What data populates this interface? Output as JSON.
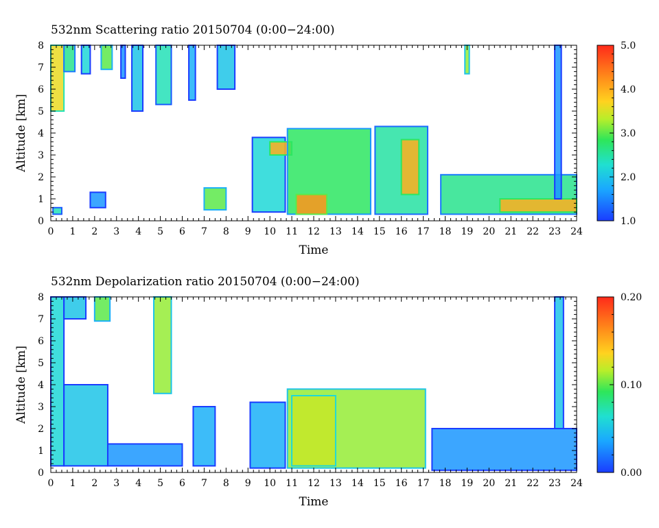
{
  "chart_data": [
    {
      "type": "heatmap",
      "title": "532nm Scattering ratio  20150704 (0:00−24:00)",
      "xlabel": "Time",
      "ylabel": "Altitude [km]",
      "xlim": [
        0,
        24
      ],
      "ylim": [
        0,
        8
      ],
      "x_ticks": [
        "0",
        "1",
        "2",
        "3",
        "4",
        "5",
        "6",
        "7",
        "8",
        "9",
        "10",
        "11",
        "12",
        "13",
        "14",
        "15",
        "16",
        "17",
        "18",
        "19",
        "20",
        "21",
        "22",
        "23",
        "24"
      ],
      "y_ticks": [
        "0",
        "1",
        "2",
        "3",
        "4",
        "5",
        "6",
        "7",
        "8"
      ],
      "colorbar": {
        "min": 1.0,
        "max": 5.0,
        "ticks": [
          "1.0",
          "2.0",
          "3.0",
          "4.0",
          "5.0"
        ]
      },
      "features": [
        {
          "x0": 0.0,
          "x1": 0.6,
          "y0": 5.0,
          "y1": 8.0,
          "v": 3.6
        },
        {
          "x0": 0.1,
          "x1": 0.5,
          "y0": 0.3,
          "y1": 0.6,
          "v": 2.4
        },
        {
          "x0": 0.6,
          "x1": 1.1,
          "y0": 6.8,
          "y1": 8.0,
          "v": 2.6
        },
        {
          "x0": 1.4,
          "x1": 1.8,
          "y0": 6.7,
          "y1": 8.0,
          "v": 2.2
        },
        {
          "x0": 2.3,
          "x1": 2.8,
          "y0": 6.9,
          "y1": 8.0,
          "v": 3.0
        },
        {
          "x0": 1.8,
          "x1": 2.5,
          "y0": 0.6,
          "y1": 1.3,
          "v": 1.6
        },
        {
          "x0": 3.2,
          "x1": 3.4,
          "y0": 6.5,
          "y1": 8.0,
          "v": 1.6
        },
        {
          "x0": 3.7,
          "x1": 4.2,
          "y0": 5.0,
          "y1": 8.0,
          "v": 2.0
        },
        {
          "x0": 4.8,
          "x1": 5.5,
          "y0": 5.3,
          "y1": 8.0,
          "v": 2.4
        },
        {
          "x0": 6.3,
          "x1": 6.6,
          "y0": 5.5,
          "y1": 8.0,
          "v": 1.8
        },
        {
          "x0": 7.6,
          "x1": 8.4,
          "y0": 6.0,
          "y1": 8.0,
          "v": 2.0
        },
        {
          "x0": 7.0,
          "x1": 8.0,
          "y0": 0.5,
          "y1": 1.5,
          "v": 3.0
        },
        {
          "x0": 9.2,
          "x1": 10.7,
          "y0": 0.4,
          "y1": 3.8,
          "v": 2.2
        },
        {
          "x0": 10.0,
          "x1": 11.0,
          "y0": 3.0,
          "y1": 3.6,
          "v": 4.0
        },
        {
          "x0": 10.8,
          "x1": 14.6,
          "y0": 0.3,
          "y1": 4.2,
          "v": 2.8
        },
        {
          "x0": 11.2,
          "x1": 12.6,
          "y0": 0.3,
          "y1": 1.2,
          "v": 4.2
        },
        {
          "x0": 14.8,
          "x1": 17.2,
          "y0": 0.3,
          "y1": 4.3,
          "v": 2.5
        },
        {
          "x0": 16.0,
          "x1": 16.8,
          "y0": 1.2,
          "y1": 3.7,
          "v": 4.0
        },
        {
          "x0": 17.8,
          "x1": 24.0,
          "y0": 0.3,
          "y1": 2.1,
          "v": 2.6
        },
        {
          "x0": 20.5,
          "x1": 24.0,
          "y0": 0.4,
          "y1": 1.0,
          "v": 4.0
        },
        {
          "x0": 23.0,
          "x1": 23.3,
          "y0": 1.0,
          "y1": 8.0,
          "v": 1.6
        },
        {
          "x0": 18.9,
          "x1": 19.1,
          "y0": 6.7,
          "y1": 8.0,
          "v": 3.2
        }
      ]
    },
    {
      "type": "heatmap",
      "title": "532nm Depolarization ratio  20150704 (0:00−24:00)",
      "xlabel": "Time",
      "ylabel": "Altitude [km]",
      "xlim": [
        0,
        24
      ],
      "ylim": [
        0,
        8
      ],
      "x_ticks": [
        "0",
        "1",
        "2",
        "3",
        "4",
        "5",
        "6",
        "7",
        "8",
        "9",
        "10",
        "11",
        "12",
        "13",
        "14",
        "15",
        "16",
        "17",
        "18",
        "19",
        "20",
        "21",
        "22",
        "23",
        "24"
      ],
      "y_ticks": [
        "0",
        "1",
        "2",
        "3",
        "4",
        "5",
        "6",
        "7",
        "8"
      ],
      "colorbar": {
        "min": 0.0,
        "max": 0.2,
        "ticks": [
          "0.00",
          "0.10",
          "0.20"
        ]
      },
      "features": [
        {
          "x0": 0.0,
          "x1": 0.6,
          "y0": 0.3,
          "y1": 8.0,
          "v": 0.06
        },
        {
          "x0": 0.6,
          "x1": 2.6,
          "y0": 0.3,
          "y1": 4.0,
          "v": 0.05
        },
        {
          "x0": 0.6,
          "x1": 1.6,
          "y0": 7.0,
          "y1": 8.0,
          "v": 0.05
        },
        {
          "x0": 2.0,
          "x1": 2.7,
          "y0": 6.9,
          "y1": 8.0,
          "v": 0.1
        },
        {
          "x0": 2.6,
          "x1": 6.0,
          "y0": 0.3,
          "y1": 1.3,
          "v": 0.03
        },
        {
          "x0": 4.7,
          "x1": 5.5,
          "y0": 3.6,
          "y1": 8.0,
          "v": 0.11
        },
        {
          "x0": 6.5,
          "x1": 7.5,
          "y0": 0.3,
          "y1": 3.0,
          "v": 0.04
        },
        {
          "x0": 9.1,
          "x1": 10.7,
          "y0": 0.2,
          "y1": 3.2,
          "v": 0.04
        },
        {
          "x0": 10.8,
          "x1": 17.1,
          "y0": 0.2,
          "y1": 3.8,
          "v": 0.11
        },
        {
          "x0": 11.0,
          "x1": 13.0,
          "y0": 0.3,
          "y1": 3.5,
          "v": 0.12
        },
        {
          "x0": 17.4,
          "x1": 24.0,
          "y0": 0.1,
          "y1": 2.0,
          "v": 0.03
        },
        {
          "x0": 23.0,
          "x1": 23.4,
          "y0": 2.0,
          "y1": 8.0,
          "v": 0.05
        }
      ]
    }
  ]
}
